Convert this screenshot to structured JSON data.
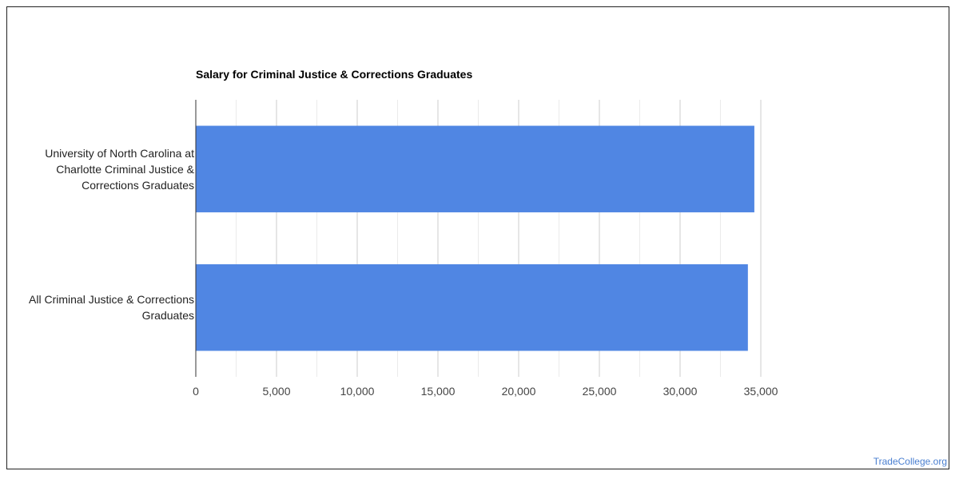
{
  "chart_data": {
    "type": "bar",
    "orientation": "horizontal",
    "title": "Salary for Criminal Justice & Corrections Graduates",
    "categories": [
      "University of North Carolina at Charlotte Criminal Justice & Corrections Graduates",
      "All Criminal Justice & Corrections Graduates"
    ],
    "category_lines": [
      [
        "University of North Carolina at",
        "Charlotte Criminal Justice &",
        "Corrections Graduates"
      ],
      [
        "All Criminal Justice & Corrections",
        "Graduates"
      ]
    ],
    "values": [
      34600,
      34200
    ],
    "xlim": [
      0,
      35000
    ],
    "xticks": [
      0,
      5000,
      10000,
      15000,
      20000,
      25000,
      30000,
      35000
    ],
    "xtick_labels": [
      "0",
      "5,000",
      "10,000",
      "15,000",
      "20,000",
      "25,000",
      "30,000",
      "35,000"
    ],
    "grid": true,
    "legend": "none",
    "bar_color": "#5086e3"
  },
  "watermark": "TradeCollege.org"
}
